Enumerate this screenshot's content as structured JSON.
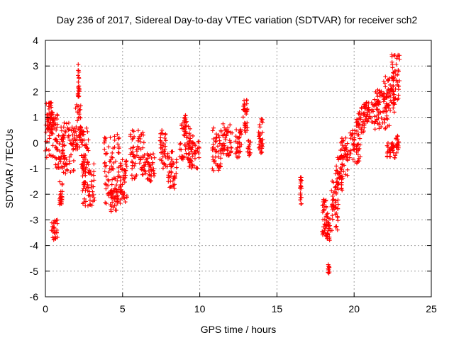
{
  "chart_data": {
    "type": "scatter",
    "title": "Day 236 of 2017, Sidereal Day-to-day VTEC variation (SDTVAR) for receiver sch2",
    "xlabel": "GPS time / hours",
    "ylabel": "SDTVAR / TECUs",
    "xlim": [
      0,
      25
    ],
    "ylim": [
      -6,
      4
    ],
    "xticks": [
      "0",
      "5",
      "10",
      "15",
      "20",
      "25"
    ],
    "yticks": [
      "-6",
      "-5",
      "-4",
      "-3",
      "-2",
      "-1",
      "0",
      "1",
      "2",
      "3",
      "4"
    ],
    "grid": true,
    "marker": "+",
    "series": [
      {
        "name": "sch2",
        "color": "#ff0000",
        "clusters": [
          {
            "x": [
              0.0,
              0.5
            ],
            "y": [
              -0.6,
              1.6
            ]
          },
          {
            "x": [
              0.1,
              0.8
            ],
            "y": [
              0.5,
              1.2
            ]
          },
          {
            "x": [
              0.4,
              0.8
            ],
            "y": [
              -3.8,
              -3.0
            ]
          },
          {
            "x": [
              0.6,
              1.3
            ],
            "y": [
              -1.0,
              0.3
            ]
          },
          {
            "x": [
              0.9,
              1.1
            ],
            "y": [
              -2.4,
              -1.5
            ]
          },
          {
            "x": [
              1.0,
              1.9
            ],
            "y": [
              -1.2,
              0.8
            ]
          },
          {
            "x": [
              1.9,
              2.3
            ],
            "y": [
              -0.3,
              1.5
            ]
          },
          {
            "x": [
              2.1,
              2.2
            ],
            "y": [
              1.8,
              3.1
            ]
          },
          {
            "x": [
              2.3,
              2.8
            ],
            "y": [
              -1.3,
              0.6
            ]
          },
          {
            "x": [
              2.4,
              3.2
            ],
            "y": [
              -2.5,
              -0.7
            ]
          },
          {
            "x": [
              3.8,
              4.8
            ],
            "y": [
              -2.4,
              0.4
            ]
          },
          {
            "x": [
              4.2,
              4.7
            ],
            "y": [
              -2.7,
              -1.8
            ]
          },
          {
            "x": [
              4.8,
              5.3
            ],
            "y": [
              -2.4,
              -0.6
            ]
          },
          {
            "x": [
              5.5,
              6.4
            ],
            "y": [
              -1.4,
              0.5
            ]
          },
          {
            "x": [
              6.4,
              7.1
            ],
            "y": [
              -1.5,
              -0.4
            ]
          },
          {
            "x": [
              7.4,
              7.8
            ],
            "y": [
              -1.0,
              0.5
            ]
          },
          {
            "x": [
              7.9,
              8.5
            ],
            "y": [
              -1.8,
              -0.3
            ]
          },
          {
            "x": [
              8.7,
              9.6
            ],
            "y": [
              -0.7,
              0.9
            ]
          },
          {
            "x": [
              9.0,
              9.1
            ],
            "y": [
              0.5,
              1.1
            ]
          },
          {
            "x": [
              9.3,
              10.0
            ],
            "y": [
              -1.0,
              0.1
            ]
          },
          {
            "x": [
              10.8,
              11.4
            ],
            "y": [
              -1.1,
              0.6
            ]
          },
          {
            "x": [
              11.4,
              12.1
            ],
            "y": [
              -0.5,
              0.8
            ]
          },
          {
            "x": [
              12.3,
              12.7
            ],
            "y": [
              -0.6,
              0.6
            ]
          },
          {
            "x": [
              12.8,
              13.1
            ],
            "y": [
              1.0,
              1.7
            ]
          },
          {
            "x": [
              12.9,
              13.1
            ],
            "y": [
              0.4,
              0.8
            ]
          },
          {
            "x": [
              13.1,
              13.3
            ],
            "y": [
              -0.5,
              0.1
            ]
          },
          {
            "x": [
              13.8,
              14.1
            ],
            "y": [
              -0.4,
              1.0
            ]
          },
          {
            "x": [
              16.5,
              16.6
            ],
            "y": [
              -2.4,
              -1.3
            ]
          },
          {
            "x": [
              17.9,
              18.2
            ],
            "y": [
              -3.7,
              -2.2
            ]
          },
          {
            "x": [
              18.2,
              18.5
            ],
            "y": [
              -3.9,
              -2.7
            ]
          },
          {
            "x": [
              18.3,
              18.4
            ],
            "y": [
              -5.1,
              -4.7
            ]
          },
          {
            "x": [
              18.5,
              19.0
            ],
            "y": [
              -3.5,
              -1.4
            ]
          },
          {
            "x": [
              18.8,
              19.3
            ],
            "y": [
              -1.9,
              -0.5
            ]
          },
          {
            "x": [
              19.1,
              19.6
            ],
            "y": [
              -1.3,
              0.2
            ]
          },
          {
            "x": [
              19.7,
              20.4
            ],
            "y": [
              -0.8,
              0.5
            ]
          },
          {
            "x": [
              20.1,
              20.7
            ],
            "y": [
              0.3,
              1.6
            ]
          },
          {
            "x": [
              20.7,
              21.6
            ],
            "y": [
              0.8,
              1.6
            ]
          },
          {
            "x": [
              21.3,
              22.3
            ],
            "y": [
              0.5,
              2.1
            ]
          },
          {
            "x": [
              21.9,
              22.6
            ],
            "y": [
              1.2,
              2.6
            ]
          },
          {
            "x": [
              22.1,
              22.8
            ],
            "y": [
              -0.6,
              0.0
            ]
          },
          {
            "x": [
              22.4,
              22.95
            ],
            "y": [
              1.5,
              3.5
            ]
          },
          {
            "x": [
              22.7,
              22.9
            ],
            "y": [
              -0.3,
              0.3
            ]
          }
        ]
      }
    ]
  }
}
